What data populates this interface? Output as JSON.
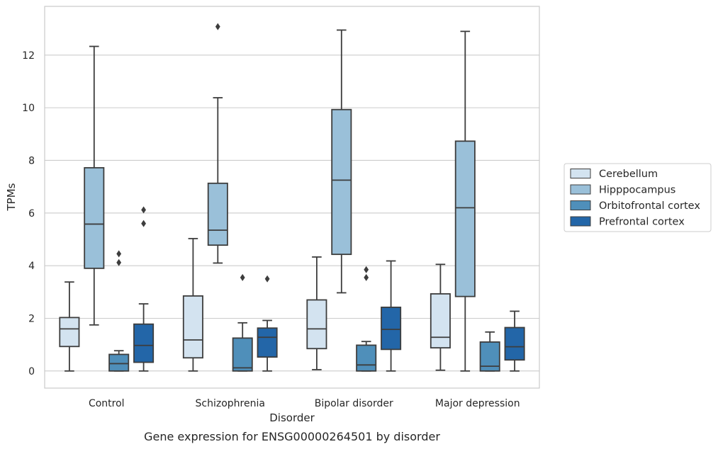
{
  "colors": {
    "Cerebellum": "#d3e3f0",
    "Hipppocampus": "#9ac0d9",
    "Orbitofrontal cortex": "#4f8fba",
    "Prefrontal cortex": "#2366a8",
    "edge": "#3d3d3d",
    "grid": "#cccccc"
  },
  "chart_data": {
    "type": "boxplot",
    "caption": "Gene expression for ENSG00000264501 by disorder",
    "xlabel": "Disorder",
    "ylabel": "TPMs",
    "ylim": [
      -0.65,
      13.85
    ],
    "yticks": [
      0,
      2,
      4,
      6,
      8,
      10,
      12
    ],
    "grid": "horizontal",
    "legend_position": "right",
    "categories": [
      "Control",
      "Schizophrenia",
      "Bipolar disorder",
      "Major depression"
    ],
    "series": [
      {
        "name": "Cerebellum",
        "boxes": [
          {
            "whislo": 0.0,
            "q1": 0.93,
            "med": 1.6,
            "q3": 2.03,
            "whishi": 3.38,
            "fliers": []
          },
          {
            "whislo": 0.0,
            "q1": 0.5,
            "med": 1.18,
            "q3": 2.85,
            "whishi": 5.03,
            "fliers": []
          },
          {
            "whislo": 0.05,
            "q1": 0.85,
            "med": 1.6,
            "q3": 2.7,
            "whishi": 4.33,
            "fliers": []
          },
          {
            "whislo": 0.03,
            "q1": 0.88,
            "med": 1.28,
            "q3": 2.93,
            "whishi": 4.05,
            "fliers": []
          }
        ]
      },
      {
        "name": "Hipppocampus",
        "boxes": [
          {
            "whislo": 1.75,
            "q1": 3.9,
            "med": 5.58,
            "q3": 7.72,
            "whishi": 12.33,
            "fliers": []
          },
          {
            "whislo": 4.1,
            "q1": 4.78,
            "med": 5.35,
            "q3": 7.13,
            "whishi": 10.38,
            "fliers": [
              13.08
            ]
          },
          {
            "whislo": 2.97,
            "q1": 4.43,
            "med": 7.25,
            "q3": 9.93,
            "whishi": 12.95,
            "fliers": []
          },
          {
            "whislo": 0.0,
            "q1": 2.83,
            "med": 6.2,
            "q3": 8.73,
            "whishi": 12.9,
            "fliers": []
          }
        ]
      },
      {
        "name": "Orbitofrontal cortex",
        "boxes": [
          {
            "whislo": 0.0,
            "q1": 0.0,
            "med": 0.28,
            "q3": 0.63,
            "whishi": 0.77,
            "fliers": [
              4.12,
              4.45
            ]
          },
          {
            "whislo": 0.0,
            "q1": 0.0,
            "med": 0.12,
            "q3": 1.25,
            "whishi": 1.83,
            "fliers": [
              3.55
            ]
          },
          {
            "whislo": 0.0,
            "q1": 0.0,
            "med": 0.23,
            "q3": 0.98,
            "whishi": 1.12,
            "fliers": [
              3.55,
              3.85
            ]
          },
          {
            "whislo": 0.0,
            "q1": 0.0,
            "med": 0.18,
            "q3": 1.1,
            "whishi": 1.48,
            "fliers": []
          }
        ]
      },
      {
        "name": "Prefrontal cortex",
        "boxes": [
          {
            "whislo": 0.0,
            "q1": 0.33,
            "med": 0.97,
            "q3": 1.78,
            "whishi": 2.55,
            "fliers": [
              5.6,
              6.12
            ]
          },
          {
            "whislo": 0.0,
            "q1": 0.53,
            "med": 1.28,
            "q3": 1.63,
            "whishi": 1.92,
            "fliers": [
              3.5
            ]
          },
          {
            "whislo": 0.0,
            "q1": 0.82,
            "med": 1.58,
            "q3": 2.42,
            "whishi": 4.18,
            "fliers": []
          },
          {
            "whislo": 0.0,
            "q1": 0.42,
            "med": 0.92,
            "q3": 1.65,
            "whishi": 2.27,
            "fliers": []
          }
        ]
      }
    ]
  }
}
